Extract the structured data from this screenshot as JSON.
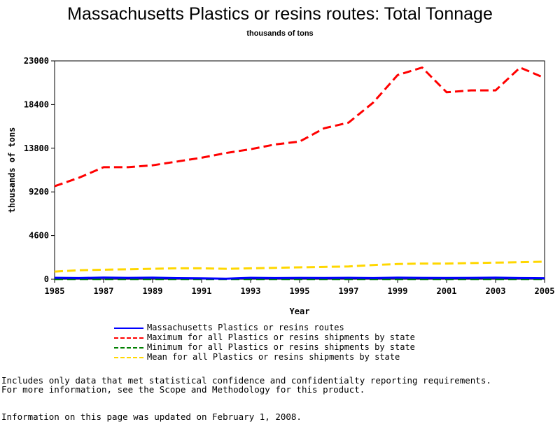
{
  "chart_data": {
    "type": "line",
    "title": "Massachusetts Plastics or resins routes: Total Tonnage",
    "subtitle": "thousands of tons",
    "xlabel": "Year",
    "ylabel": "thousands of tons",
    "ylim": [
      0,
      23000
    ],
    "xlim": [
      1985,
      2005
    ],
    "yticks": [
      0,
      4600,
      9200,
      13800,
      18400,
      23000
    ],
    "xticks": [
      1985,
      1987,
      1989,
      1991,
      1993,
      1995,
      1997,
      1999,
      2001,
      2003,
      2005
    ],
    "x": [
      1985,
      1986,
      1987,
      1988,
      1989,
      1990,
      1991,
      1992,
      1993,
      1994,
      1995,
      1996,
      1997,
      1998,
      1999,
      2000,
      2001,
      2002,
      2003,
      2004,
      2005
    ],
    "series": [
      {
        "name": "Massachusetts Plastics or resins routes",
        "color": "#0000ff",
        "dash": "solid",
        "values": [
          150,
          120,
          180,
          140,
          160,
          110,
          90,
          60,
          150,
          120,
          140,
          130,
          150,
          120,
          160,
          140,
          130,
          140,
          160,
          120,
          100
        ]
      },
      {
        "name": "Maximum for all Plastics or resins shipments by state",
        "color": "#ff0000",
        "dash": "dashed",
        "values": [
          9800,
          10700,
          11800,
          11800,
          12000,
          12400,
          12800,
          13300,
          13700,
          14200,
          14500,
          15900,
          16500,
          18600,
          21500,
          22300,
          19700,
          19900,
          19900,
          22300,
          21200
        ]
      },
      {
        "name": "Minimum for all Plastics or resins shipments by state",
        "color": "#008000",
        "dash": "dashed",
        "values": [
          20,
          20,
          20,
          20,
          20,
          20,
          20,
          20,
          20,
          20,
          20,
          20,
          20,
          20,
          20,
          20,
          20,
          20,
          20,
          20,
          20
        ]
      },
      {
        "name": "Mean for all Plastics or resins shipments by state",
        "color": "#ffd700",
        "dash": "dashed",
        "values": [
          800,
          950,
          1000,
          1050,
          1100,
          1150,
          1150,
          1100,
          1150,
          1200,
          1250,
          1300,
          1350,
          1500,
          1600,
          1650,
          1650,
          1700,
          1750,
          1800,
          1850
        ]
      }
    ]
  },
  "notes": {
    "line1": "Includes only data that met statistical confidence and confidentialty reporting requirements.",
    "line2": "For more information, see the Scope and Methodology for this product.",
    "updated": "Information on this page was updated on February 1, 2008."
  }
}
